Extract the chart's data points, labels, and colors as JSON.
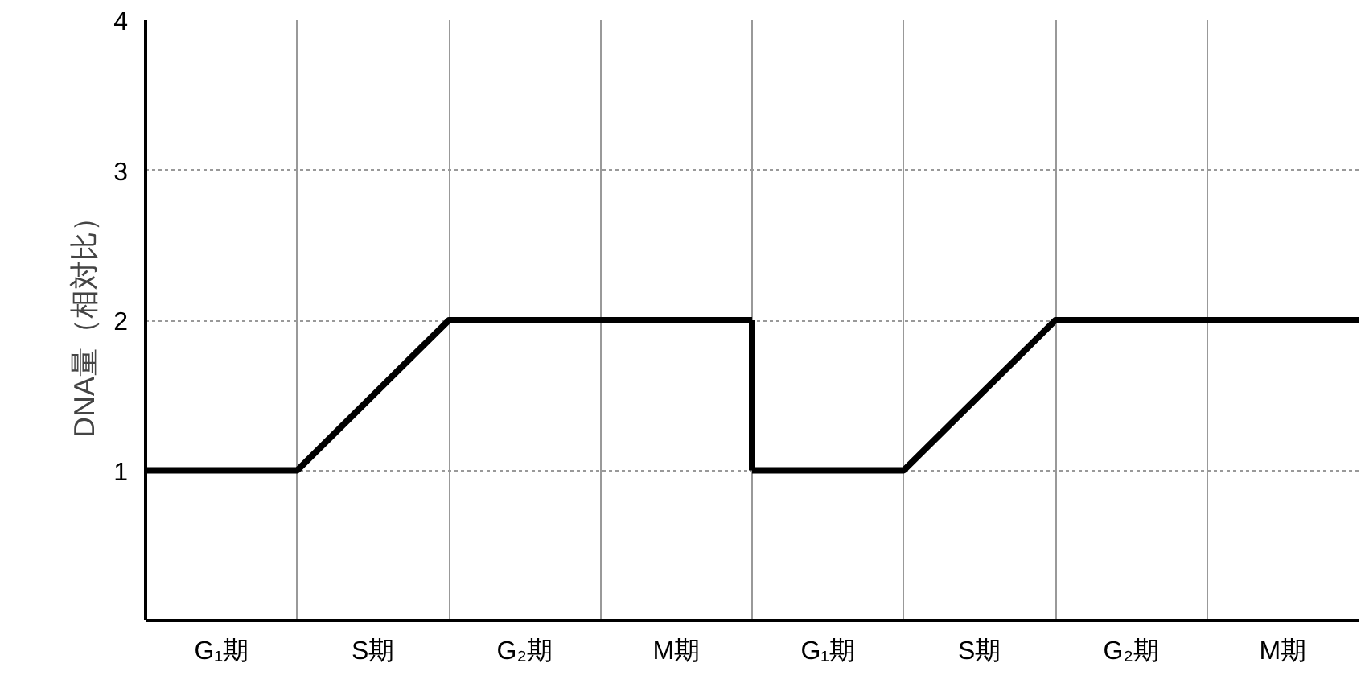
{
  "chart_data": {
    "type": "line",
    "ylabel": "DNA量（相対比）",
    "categories": [
      null,
      "G₁期",
      null,
      "S期",
      null,
      "G₂期",
      null,
      "M期",
      null,
      "G₁期",
      null,
      "S期",
      null,
      "G₂期",
      null,
      "M期",
      null
    ],
    "series": [
      {
        "color": "#000000",
        "values": [
          1,
          1,
          1,
          1.5,
          2,
          2,
          2,
          2,
          2,
          null,
          null,
          null,
          null,
          null,
          null,
          null,
          null
        ],
        "errors": [
          null,
          null,
          null,
          null,
          null,
          null,
          null,
          null,
          [
            1,
            2
          ],
          null,
          null,
          null,
          null,
          null,
          null,
          null,
          null
        ]
      },
      {
        "color": "#000000",
        "values": [
          null,
          null,
          null,
          null,
          null,
          null,
          null,
          null,
          1,
          1,
          1,
          1.5,
          2,
          2,
          2,
          2,
          2
        ]
      }
    ],
    "ylim": [
      0,
      4
    ],
    "yticks": [
      1,
      2,
      3,
      4
    ],
    "grid": true,
    "marker": "none",
    "line_style": "solid"
  }
}
